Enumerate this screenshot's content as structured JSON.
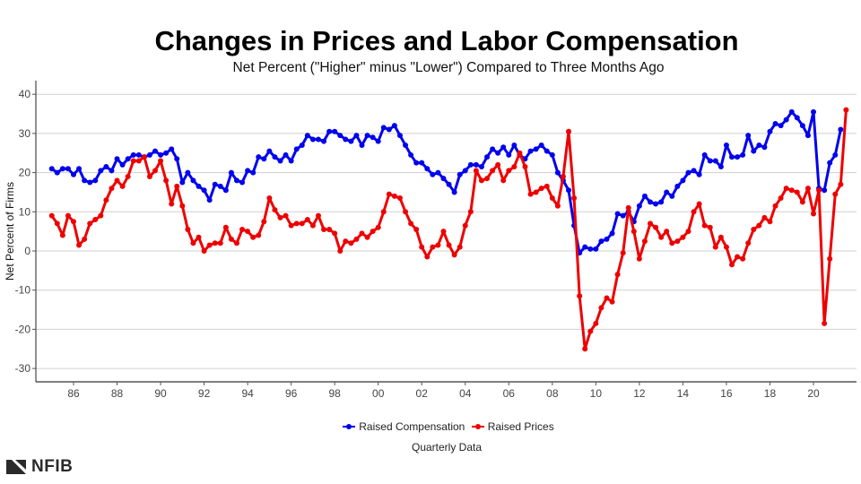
{
  "chart_data": {
    "type": "line",
    "title": "Changes in Prices and Labor Compensation",
    "subtitle": "Net Percent (\"Higher\" minus \"Lower\") Compared to Three Months Ago",
    "xlabel": "Quarterly Data",
    "ylabel": "Net Percent of Firms",
    "x_start": "1985 Q1",
    "x_frequency": "quarterly",
    "xlim": [
      1984.6,
      2021.9
    ],
    "ylim": [
      -33,
      43
    ],
    "yticks": [
      -30,
      -20,
      -10,
      0,
      10,
      20,
      30,
      40
    ],
    "ytick_labels": [
      "-30",
      "-20",
      "-10",
      "0",
      "10",
      "20",
      "30",
      "40"
    ],
    "xticks": [
      1986,
      1988,
      1990,
      1992,
      1994,
      1996,
      1998,
      2000,
      2002,
      2004,
      2006,
      2008,
      2010,
      2012,
      2014,
      2016,
      2018,
      2020
    ],
    "xtick_labels": [
      "86",
      "88",
      "90",
      "92",
      "94",
      "96",
      "98",
      "00",
      "02",
      "04",
      "06",
      "08",
      "10",
      "12",
      "14",
      "16",
      "18",
      "20"
    ],
    "grid": "horizontal",
    "legend_position": "bottom",
    "series": [
      {
        "name": "Raised Compensation",
        "color": "#0000ee",
        "values": [
          21,
          20,
          21,
          21,
          19.5,
          21,
          18,
          17.5,
          18,
          20.5,
          21.5,
          20.5,
          23.5,
          22,
          23.5,
          24.5,
          24.5,
          24,
          24.5,
          25.5,
          24.5,
          25,
          26,
          23.5,
          17.5,
          20,
          18,
          16.5,
          15.5,
          13,
          17,
          16.5,
          15.5,
          20,
          18,
          17.5,
          20.5,
          20,
          24,
          23.5,
          25.5,
          24,
          23,
          24.5,
          23,
          26,
          27,
          29.5,
          28.5,
          28.5,
          28,
          30.5,
          30.5,
          29.5,
          28.5,
          28,
          29.5,
          27,
          29.5,
          29,
          28,
          31.5,
          31,
          32,
          29.5,
          27,
          24.5,
          22.5,
          22.5,
          21,
          19.5,
          20,
          18.5,
          17,
          15,
          19.5,
          20.5,
          22,
          22,
          21.5,
          24,
          26,
          25,
          26.5,
          24.5,
          27,
          24.5,
          23.5,
          25.5,
          26,
          27,
          25.5,
          24.5,
          20,
          18,
          15.5,
          6.5,
          -0.5,
          1,
          0.5,
          0.5,
          2.5,
          3,
          4.5,
          9.5,
          9,
          10,
          7.5,
          11.5,
          14,
          12.5,
          12,
          12.5,
          15,
          14,
          16.5,
          18,
          20,
          20.5,
          19.5,
          24.5,
          23,
          23,
          21.5,
          27,
          24,
          24,
          24.5,
          29.5,
          25.5,
          27,
          26.5,
          30.5,
          32.5,
          32,
          33.5,
          35.5,
          34,
          32,
          29.5,
          35.5,
          16,
          15.5,
          22.5,
          24.5,
          31
        ]
      },
      {
        "name": "Raised Prices",
        "color": "#ee0000",
        "values": [
          9,
          7,
          4,
          9,
          7.5,
          1.5,
          3,
          7,
          8,
          9,
          13,
          16,
          18,
          16.5,
          19,
          23,
          23,
          24,
          19,
          20.5,
          23,
          18,
          12,
          16.5,
          11.5,
          5.5,
          2,
          3.5,
          0,
          1.5,
          2,
          2,
          6,
          3,
          2,
          5.5,
          5,
          3.5,
          4,
          7.5,
          13.5,
          10.5,
          8.5,
          9,
          6.5,
          7,
          7,
          8,
          6.5,
          9,
          5.5,
          5.5,
          4.5,
          0,
          2.5,
          2,
          3,
          4.5,
          3.5,
          5,
          6,
          10,
          14.5,
          14,
          13.5,
          10,
          7,
          5.5,
          1,
          -1.5,
          1,
          1.5,
          5,
          1.5,
          -1,
          1,
          6.5,
          10,
          20.5,
          18,
          18.5,
          20.5,
          22,
          18,
          20.5,
          21.5,
          25,
          21.5,
          14.5,
          15,
          16,
          16.5,
          13.5,
          11.5,
          19,
          30.5,
          13.5,
          -11.5,
          -25,
          -20.5,
          -18.5,
          -14.5,
          -12,
          -13,
          -6,
          -0.5,
          11,
          5,
          -2,
          2.5,
          7,
          6,
          3.5,
          5,
          2,
          2.5,
          3.5,
          5,
          10,
          12,
          6.5,
          6,
          1,
          3.5,
          1,
          -3.5,
          -1.5,
          -2,
          2,
          5.5,
          6.5,
          8.5,
          7.5,
          11.5,
          13.5,
          16,
          15.5,
          15,
          12.5,
          16,
          9.5,
          15.5,
          -18.5,
          -2,
          14.5,
          17,
          36
        ]
      }
    ]
  },
  "logo": {
    "text": "NFIB",
    "icon": "nfib-logo-icon"
  }
}
